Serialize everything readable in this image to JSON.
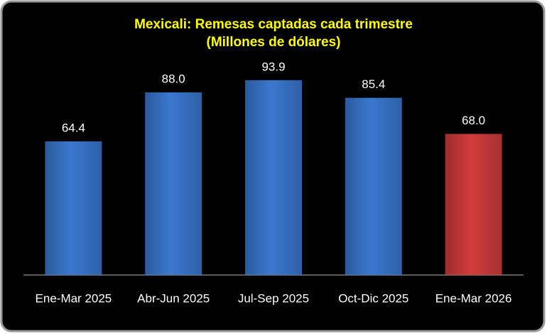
{
  "chart_data": {
    "type": "bar",
    "title": "Mexicali: Remesas captadas cada trimestre",
    "subtitle": "(Millones de dólares)",
    "categories": [
      "Ene-Mar 2025",
      "Abr-Jun 2025",
      "Jul-Sep 2025",
      "Oct-Dic 2025",
      "Ene-Mar 2026"
    ],
    "values": [
      64.4,
      88.0,
      93.9,
      85.4,
      68.0
    ],
    "value_labels": [
      "64.4",
      "88.0",
      "93.9",
      "85.4",
      "68.0"
    ],
    "colors": [
      "#3a78d0",
      "#3a78d0",
      "#3a78d0",
      "#3a78d0",
      "#d23c3c"
    ],
    "ylim": [
      0,
      100
    ]
  }
}
